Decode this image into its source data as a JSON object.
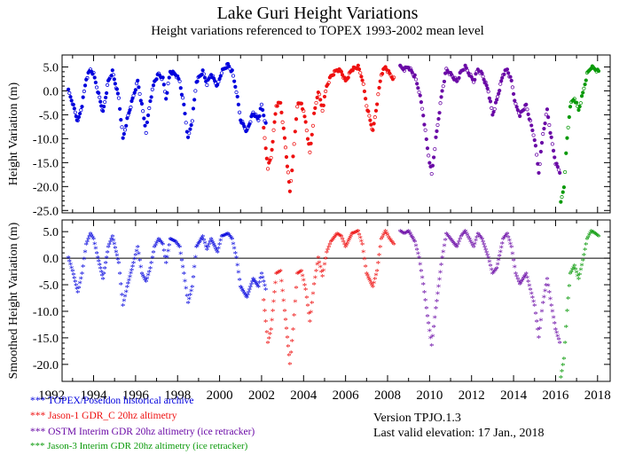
{
  "title": "Lake Guri Height Variations",
  "subtitle": "Height variations referenced to TOPEX 1993-2002 mean level",
  "version": "Version TPJO.1.3",
  "last_valid": "Last valid elevation: 17 Jan.,   2018",
  "colors": {
    "topex": "#0000dd",
    "jason1": "#ee1111",
    "ostm": "#6a0aa6",
    "jason3": "#0a9a0a"
  },
  "legend": [
    {
      "marker": "***",
      "label": "TOPEX/Poseidon historical archive",
      "color": "#0000dd"
    },
    {
      "marker": "***",
      "label": "Jason-1 GDR_C 20hz altimetry",
      "color": "#ee1111"
    },
    {
      "marker": "***",
      "label": "OSTM  Interim GDR 20hz altimetry (ice retracker)",
      "color": "#6a0aa6"
    },
    {
      "marker": "***",
      "label": "Jason-3  Interim GDR 20hz altimetry (ice retracker)",
      "color": "#0a9a0a"
    }
  ],
  "chart_data": [
    {
      "type": "scatter",
      "panel": "top",
      "ylabel": "Height Variation (m)",
      "xlim": [
        1992.5,
        2018.6
      ],
      "ylim": [
        -25.5,
        7.5
      ],
      "yticks": [
        -25,
        -20,
        -15,
        -10,
        -5,
        0,
        5
      ],
      "ytick_labels": [
        "-25.0",
        "-20.0",
        "-15.0",
        "-10.0",
        "-5.0",
        "0.0",
        "5.0"
      ],
      "zero_line": false,
      "marker": "dot",
      "series": [
        {
          "name": "TOPEX/Poseidon",
          "color": "#0000dd",
          "x": [
            1992.8,
            1993.0,
            1993.25,
            1993.45,
            1993.65,
            1993.85,
            1994.0,
            1994.2,
            1994.45,
            1994.7,
            1994.9,
            1995.2,
            1995.4,
            1995.6,
            1995.9,
            1996.1,
            1996.3,
            1996.5,
            1996.7,
            1996.9,
            1997.1,
            1997.3,
            1997.45,
            1997.65,
            1997.9,
            1998.1,
            1998.3,
            1998.5,
            1998.7,
            1998.9,
            1999.2,
            1999.4,
            1999.6,
            1999.9,
            2000.1,
            2000.4,
            2000.6,
            2000.8,
            2001.0,
            2001.3,
            2001.6,
            2001.85,
            2002.0,
            2002.2
          ],
          "y": [
            0.0,
            -2.5,
            -6.5,
            -3.0,
            2.5,
            4.5,
            3.5,
            0.0,
            -4.5,
            2.0,
            4.0,
            -1.5,
            -10.0,
            -6.0,
            -1.0,
            2.0,
            -3.0,
            -8.5,
            -2.0,
            2.0,
            3.5,
            2.5,
            -1.5,
            4.0,
            3.5,
            2.0,
            -3.0,
            -10.0,
            -6.0,
            2.0,
            4.0,
            1.5,
            3.5,
            1.0,
            4.0,
            5.5,
            4.0,
            0.0,
            -6.0,
            -8.5,
            -4.5,
            -6.0,
            -3.0,
            -7.0
          ]
        },
        {
          "name": "Jason-1 GDR_C",
          "color": "#ee1111",
          "x": [
            2002.1,
            2002.3,
            2002.45,
            2002.7,
            2002.9,
            2003.1,
            2003.35,
            2003.5,
            2003.7,
            2003.9,
            2004.1,
            2004.3,
            2004.5,
            2004.7,
            2004.9,
            2005.1,
            2005.3,
            2005.6,
            2005.8,
            2006.0,
            2006.3,
            2006.6,
            2006.8,
            2007.0,
            2007.3,
            2007.5,
            2007.7,
            2007.9,
            2008.1,
            2008.3
          ],
          "y": [
            -8.0,
            -16.0,
            -14.0,
            -3.0,
            -2.5,
            -10.0,
            -21.0,
            -14.0,
            -3.0,
            -2.5,
            -6.5,
            -13.0,
            -5.0,
            0.0,
            -4.0,
            1.0,
            3.0,
            4.5,
            4.0,
            2.0,
            4.5,
            5.0,
            2.5,
            -3.0,
            -8.5,
            -2.5,
            3.5,
            5.0,
            3.5,
            2.5
          ]
        },
        {
          "name": "OSTM Interim GDR",
          "color": "#6a0aa6",
          "x": [
            2008.6,
            2008.8,
            2009.0,
            2009.3,
            2009.5,
            2009.7,
            2009.9,
            2010.1,
            2010.3,
            2010.6,
            2010.8,
            2011.0,
            2011.3,
            2011.5,
            2011.7,
            2011.9,
            2012.1,
            2012.3,
            2012.5,
            2012.8,
            2013.0,
            2013.2,
            2013.5,
            2013.7,
            2013.9,
            2014.1,
            2014.3,
            2014.6,
            2014.8,
            2015.0,
            2015.2,
            2015.4,
            2015.6,
            2015.8,
            2016.0,
            2016.2
          ],
          "y": [
            5.0,
            4.5,
            5.0,
            3.0,
            0.0,
            -5.0,
            -12.0,
            -17.5,
            -10.0,
            0.0,
            4.5,
            3.5,
            2.0,
            4.0,
            5.0,
            3.5,
            2.0,
            4.5,
            3.5,
            0.0,
            -5.0,
            -2.0,
            3.5,
            4.5,
            2.0,
            -3.0,
            -5.0,
            -3.0,
            -6.5,
            -10.0,
            -17.0,
            -9.0,
            -4.0,
            -10.0,
            -15.0,
            -17.0
          ]
        },
        {
          "name": "Jason-3 Interim GDR",
          "color": "#0a9a0a",
          "x": [
            2016.25,
            2016.4,
            2016.55,
            2016.7,
            2016.9,
            2017.1,
            2017.3,
            2017.5,
            2017.7,
            2017.9,
            2018.05
          ],
          "y": [
            -23.5,
            -20.0,
            -10.0,
            -3.0,
            -1.5,
            -4.0,
            -0.5,
            3.5,
            5.0,
            4.5,
            4.0
          ]
        }
      ]
    },
    {
      "type": "scatter",
      "panel": "bottom",
      "ylabel": "Smoothed Height Variation (m)",
      "xlim": [
        1992.5,
        2018.6
      ],
      "ylim": [
        -23.2,
        7.2
      ],
      "yticks": [
        -20,
        -15,
        -10,
        -5,
        0,
        5
      ],
      "ytick_labels": [
        "-20.0",
        "-15.0",
        "-10.0",
        "-5.0",
        "0.0",
        "5.0"
      ],
      "xticks": [
        1992,
        1994,
        1996,
        1998,
        2000,
        2002,
        2004,
        2006,
        2008,
        2010,
        2012,
        2014,
        2016,
        2018
      ],
      "xtick_labels": [
        "1992",
        "1994",
        "1996",
        "1998",
        "2000",
        "2002",
        "2004",
        "2006",
        "2008",
        "2010",
        "2012",
        "2014",
        "2016",
        "2018"
      ],
      "zero_line": true,
      "marker": "asterisk",
      "series": [
        {
          "name": "TOPEX/Poseidon",
          "color": "#0000dd",
          "x": [
            1992.8,
            1993.0,
            1993.25,
            1993.45,
            1993.65,
            1993.85,
            1994.0,
            1994.2,
            1994.45,
            1994.7,
            1994.9,
            1995.2,
            1995.4,
            1995.6,
            1995.9,
            1996.1,
            1996.3,
            1996.5,
            1996.7,
            1996.9,
            1997.1,
            1997.3,
            1997.45,
            1997.65,
            1997.9,
            1998.1,
            1998.3,
            1998.5,
            1998.7,
            1998.9,
            1999.2,
            1999.4,
            1999.6,
            1999.9,
            2000.1,
            2000.4,
            2000.6,
            2000.8,
            2001.0,
            2001.3,
            2001.6,
            2001.85,
            2002.0,
            2002.2
          ],
          "y": [
            0.0,
            -2.5,
            -6.5,
            -3.0,
            2.5,
            4.5,
            3.5,
            0.0,
            -4.0,
            2.0,
            4.0,
            -1.0,
            -9.0,
            -5.5,
            -1.0,
            2.0,
            -3.0,
            -4.5,
            -2.0,
            2.0,
            3.5,
            2.5,
            -1.0,
            3.5,
            3.0,
            2.0,
            -3.0,
            -8.5,
            -5.5,
            2.0,
            4.0,
            1.5,
            3.5,
            1.0,
            4.0,
            4.5,
            3.5,
            0.0,
            -5.5,
            -7.5,
            -4.0,
            -5.5,
            -3.0,
            -6.0
          ]
        },
        {
          "name": "Jason-1 GDR_C",
          "color": "#ee1111",
          "x": [
            2002.1,
            2002.3,
            2002.45,
            2002.7,
            2002.9,
            2003.1,
            2003.35,
            2003.5,
            2003.7,
            2003.9,
            2004.1,
            2004.3,
            2004.5,
            2004.7,
            2004.9,
            2005.1,
            2005.3,
            2005.6,
            2005.8,
            2006.0,
            2006.3,
            2006.6,
            2006.8,
            2007.0,
            2007.3,
            2007.5,
            2007.7,
            2007.9,
            2008.1,
            2008.3
          ],
          "y": [
            -8.0,
            -16.0,
            -13.5,
            -3.0,
            -2.5,
            -10.0,
            -20.0,
            -13.5,
            -3.0,
            -2.5,
            -6.0,
            -12.0,
            -5.0,
            0.0,
            -3.5,
            1.0,
            3.0,
            4.5,
            4.0,
            2.0,
            4.5,
            5.0,
            2.5,
            -3.0,
            -5.5,
            -2.5,
            3.5,
            5.0,
            3.5,
            2.5
          ]
        },
        {
          "name": "OSTM Interim GDR",
          "color": "#6a0aa6",
          "x": [
            2008.6,
            2008.8,
            2009.0,
            2009.3,
            2009.5,
            2009.7,
            2009.9,
            2010.1,
            2010.3,
            2010.6,
            2010.8,
            2011.0,
            2011.3,
            2011.5,
            2011.7,
            2011.9,
            2012.1,
            2012.3,
            2012.5,
            2012.8,
            2013.0,
            2013.2,
            2013.5,
            2013.7,
            2013.9,
            2014.1,
            2014.3,
            2014.6,
            2014.8,
            2015.0,
            2015.2,
            2015.4,
            2015.6,
            2015.8,
            2016.0,
            2016.2
          ],
          "y": [
            5.0,
            4.5,
            5.0,
            3.0,
            0.0,
            -5.0,
            -11.0,
            -16.5,
            -9.5,
            0.0,
            4.5,
            3.5,
            2.0,
            4.0,
            5.0,
            3.5,
            2.0,
            4.5,
            3.5,
            0.0,
            -3.0,
            -2.0,
            3.5,
            4.5,
            2.0,
            -3.0,
            -5.0,
            -3.0,
            -6.0,
            -9.0,
            -15.0,
            -8.5,
            -4.0,
            -9.0,
            -13.5,
            -16.0
          ]
        },
        {
          "name": "Jason-3 Interim GDR",
          "color": "#0a9a0a",
          "x": [
            2016.25,
            2016.4,
            2016.55,
            2016.7,
            2016.9,
            2017.1,
            2017.3,
            2017.5,
            2017.7,
            2017.9,
            2018.05
          ],
          "y": [
            -22.5,
            -19.0,
            -10.0,
            -3.0,
            -1.5,
            -4.0,
            -0.5,
            3.5,
            5.0,
            4.5,
            4.0
          ]
        }
      ]
    }
  ]
}
